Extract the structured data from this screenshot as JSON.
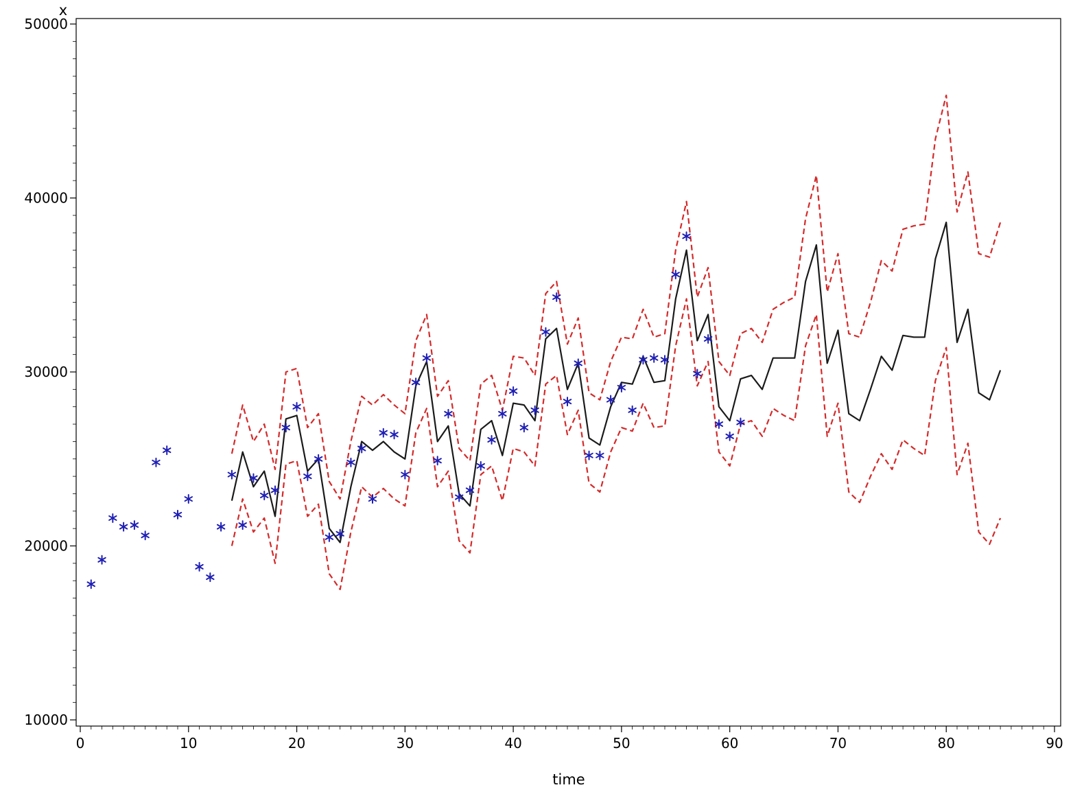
{
  "chart_data": {
    "type": "line",
    "title": "",
    "xlabel": "time",
    "ylabel": "x",
    "xlim": [
      0,
      90
    ],
    "ylim": [
      10000,
      50000
    ],
    "x_ticks": [
      "0",
      "10",
      "20",
      "30",
      "40",
      "50",
      "60",
      "70",
      "80",
      "90"
    ],
    "y_ticks": [
      "10000",
      "20000",
      "30000",
      "40000",
      "50000"
    ],
    "grid": false,
    "legend": "none",
    "colors": {
      "observed": "#1f1fb4",
      "forecast": "#1a1a1a",
      "bounds": "#d42a2a"
    },
    "observed": [
      [
        1,
        17800
      ],
      [
        2,
        19200
      ],
      [
        3,
        21600
      ],
      [
        4,
        21100
      ],
      [
        5,
        21200
      ],
      [
        6,
        20600
      ],
      [
        7,
        24800
      ],
      [
        8,
        25500
      ],
      [
        9,
        21800
      ],
      [
        10,
        22700
      ],
      [
        11,
        18800
      ],
      [
        12,
        18200
      ],
      [
        13,
        21100
      ],
      [
        14,
        24100
      ],
      [
        15,
        21200
      ],
      [
        16,
        23900
      ],
      [
        17,
        22900
      ],
      [
        18,
        23200
      ],
      [
        19,
        26800
      ],
      [
        20,
        28000
      ],
      [
        21,
        24000
      ],
      [
        22,
        25000
      ],
      [
        23,
        20500
      ],
      [
        24,
        20700
      ],
      [
        25,
        24800
      ],
      [
        26,
        25600
      ],
      [
        27,
        22700
      ],
      [
        28,
        26500
      ],
      [
        29,
        26400
      ],
      [
        30,
        24100
      ],
      [
        31,
        29400
      ],
      [
        32,
        30800
      ],
      [
        33,
        24900
      ],
      [
        34,
        27600
      ],
      [
        35,
        22800
      ],
      [
        36,
        23200
      ],
      [
        37,
        24600
      ],
      [
        38,
        26100
      ],
      [
        39,
        27600
      ],
      [
        40,
        28900
      ],
      [
        41,
        26800
      ],
      [
        42,
        27800
      ],
      [
        43,
        32300
      ],
      [
        44,
        34300
      ],
      [
        45,
        28300
      ],
      [
        46,
        30500
      ],
      [
        47,
        25200
      ],
      [
        48,
        25200
      ],
      [
        49,
        28400
      ],
      [
        50,
        29100
      ],
      [
        51,
        27800
      ],
      [
        52,
        30700
      ],
      [
        53,
        30800
      ],
      [
        54,
        30700
      ],
      [
        55,
        35600
      ],
      [
        56,
        37800
      ],
      [
        57,
        29900
      ],
      [
        58,
        31900
      ],
      [
        59,
        27000
      ],
      [
        60,
        26300
      ],
      [
        61,
        27100
      ]
    ],
    "series": [
      {
        "role": "forecast",
        "x": [
          14,
          15,
          16,
          17,
          18,
          19,
          20,
          21,
          22,
          23,
          24,
          25,
          26,
          27,
          28,
          29,
          30,
          31,
          32,
          33,
          34,
          35,
          36,
          37,
          38,
          39,
          40,
          41,
          42,
          43,
          44,
          45,
          46,
          47,
          48,
          49,
          50,
          51,
          52,
          53,
          54,
          55,
          56,
          57,
          58,
          59,
          60,
          61,
          62,
          63,
          64,
          65,
          66,
          67,
          68,
          69,
          70,
          71,
          72,
          73,
          74,
          75,
          76,
          77,
          78,
          79,
          80,
          81,
          82,
          83,
          84,
          85
        ],
        "values": [
          22600,
          25400,
          23400,
          24300,
          21700,
          27300,
          27500,
          24300,
          25000,
          21000,
          20200,
          23400,
          26000,
          25500,
          26000,
          25400,
          25000,
          29200,
          30600,
          26000,
          26900,
          23000,
          22300,
          26700,
          27200,
          25200,
          28200,
          28100,
          27200,
          31900,
          32500,
          29000,
          30500,
          26200,
          25800,
          28000,
          29400,
          29300,
          30900,
          29400,
          29500,
          34200,
          37000,
          31800,
          33300,
          28000,
          27200,
          29600,
          29800,
          29000,
          30800,
          30800,
          30800,
          35200,
          37300,
          30500,
          32400,
          27600,
          27200,
          29000,
          30900,
          30100,
          32100,
          32000,
          32000,
          36500,
          38600,
          31700,
          33600,
          28800,
          28400,
          30100
        ]
      },
      {
        "role": "upper",
        "x": [
          14,
          15,
          16,
          17,
          18,
          19,
          20,
          21,
          22,
          23,
          24,
          25,
          26,
          27,
          28,
          29,
          30,
          31,
          32,
          33,
          34,
          35,
          36,
          37,
          38,
          39,
          40,
          41,
          42,
          43,
          44,
          45,
          46,
          47,
          48,
          49,
          50,
          51,
          52,
          53,
          54,
          55,
          56,
          57,
          58,
          59,
          60,
          61,
          62,
          63,
          64,
          65,
          66,
          67,
          68,
          69,
          70,
          71,
          72,
          73,
          74,
          75,
          76,
          77,
          78,
          79,
          80,
          81,
          82,
          83,
          84,
          85
        ],
        "values": [
          25300,
          28100,
          26000,
          27000,
          24400,
          30000,
          30200,
          26800,
          27600,
          23700,
          22700,
          26000,
          28600,
          28100,
          28700,
          28100,
          27600,
          31800,
          33300,
          28600,
          29500,
          25600,
          24900,
          29300,
          29800,
          27800,
          30900,
          30800,
          29800,
          34500,
          35200,
          31600,
          33100,
          28800,
          28400,
          30600,
          32000,
          31900,
          33600,
          32000,
          32200,
          37000,
          39800,
          34300,
          36000,
          30600,
          29800,
          32200,
          32500,
          31700,
          33600,
          34000,
          34300,
          38800,
          41300,
          34600,
          36800,
          32200,
          32000,
          34000,
          36400,
          35800,
          38200,
          38400,
          38500,
          43400,
          45900,
          39200,
          41500,
          36800,
          36600,
          38600
        ]
      },
      {
        "role": "lower",
        "x": [
          14,
          15,
          16,
          17,
          18,
          19,
          20,
          21,
          22,
          23,
          24,
          25,
          26,
          27,
          28,
          29,
          30,
          31,
          32,
          33,
          34,
          35,
          36,
          37,
          38,
          39,
          40,
          41,
          42,
          43,
          44,
          45,
          46,
          47,
          48,
          49,
          50,
          51,
          52,
          53,
          54,
          55,
          56,
          57,
          58,
          59,
          60,
          61,
          62,
          63,
          64,
          65,
          66,
          67,
          68,
          69,
          70,
          71,
          72,
          73,
          74,
          75,
          76,
          77,
          78,
          79,
          80,
          81,
          82,
          83,
          84,
          85
        ],
        "values": [
          20000,
          22700,
          20800,
          21600,
          19000,
          24700,
          24900,
          21700,
          22400,
          18400,
          17500,
          20800,
          23400,
          22800,
          23300,
          22700,
          22300,
          26500,
          27900,
          23400,
          24300,
          20300,
          19600,
          24100,
          24600,
          22600,
          25600,
          25400,
          24600,
          29300,
          29800,
          26400,
          27800,
          23600,
          23100,
          25400,
          26800,
          26600,
          28200,
          26800,
          26900,
          31500,
          34200,
          29200,
          30600,
          25400,
          24600,
          27000,
          27200,
          26300,
          27900,
          27500,
          27200,
          31500,
          33300,
          26300,
          28200,
          23100,
          22500,
          24000,
          25300,
          24400,
          26100,
          25600,
          25200,
          29500,
          31400,
          24100,
          25900,
          20800,
          20100,
          21600
        ]
      }
    ]
  }
}
